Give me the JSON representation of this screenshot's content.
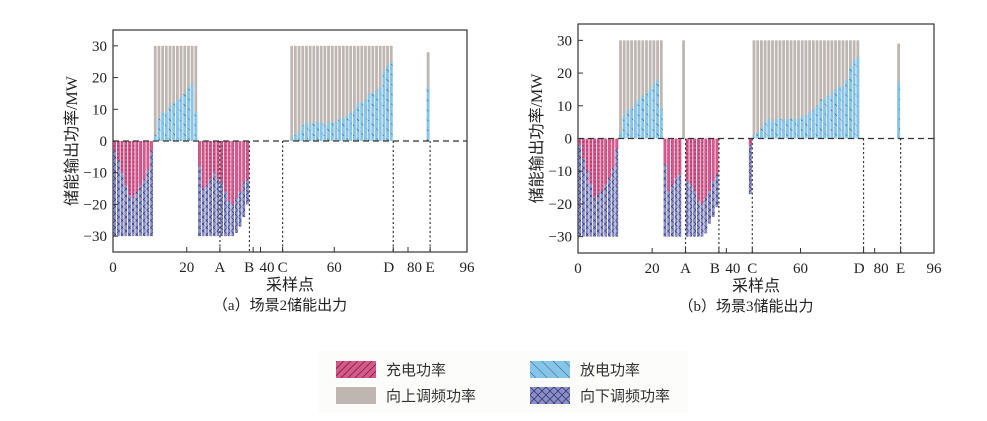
{
  "colors": {
    "charge": "#d9578a",
    "discharge": "#86c5ea",
    "up_reg": "#bfb6b1",
    "down_reg": "#8a8fcc",
    "axis": "#333333",
    "legend_bg": "#fcfcfb"
  },
  "legend": {
    "items": [
      {
        "key": "charge",
        "label": "充电功率"
      },
      {
        "key": "discharge",
        "label": "放电功率"
      },
      {
        "key": "up_reg",
        "label": "向上调频功率"
      },
      {
        "key": "down_reg",
        "label": "向下调频功率"
      }
    ]
  },
  "chart_data": [
    {
      "type": "bar",
      "title": "（a）场景2储能出力",
      "xlabel": "采样点",
      "ylabel": "储能输出功率/MW",
      "xlim": [
        0,
        96
      ],
      "ylim": [
        -35,
        35
      ],
      "yticks": [
        -30,
        -20,
        -10,
        0,
        10,
        20,
        30
      ],
      "xticks": [
        {
          "v": 0,
          "label": "0"
        },
        {
          "v": 20,
          "label": "20"
        },
        {
          "v": 29,
          "label": "A"
        },
        {
          "v": 38,
          "label": "B"
        },
        {
          "v": 40,
          "label": "40"
        },
        {
          "v": 46,
          "label": "C"
        },
        {
          "v": 60,
          "label": "60"
        },
        {
          "v": 76,
          "label": "D"
        },
        {
          "v": 80,
          "label": "80"
        },
        {
          "v": 86,
          "label": "E"
        },
        {
          "v": 96,
          "label": "96"
        }
      ],
      "vlines": [
        29,
        37,
        46,
        76,
        86
      ],
      "series": {
        "charge": {
          "x": [
            1,
            2,
            3,
            4,
            5,
            6,
            7,
            8,
            9,
            10,
            11,
            24,
            25,
            26,
            27,
            28,
            29,
            30,
            31,
            32,
            33,
            34,
            35,
            36,
            37
          ],
          "values": [
            -3,
            -6,
            -10,
            -14,
            -17,
            -18,
            -16,
            -14,
            -12,
            -9,
            -3,
            -8,
            -15,
            -14,
            -12,
            -10,
            -12,
            -13,
            -16,
            -19,
            -20,
            -18,
            -16,
            -13,
            -12
          ]
        },
        "down_reg": {
          "x": [
            1,
            2,
            3,
            4,
            5,
            6,
            7,
            8,
            9,
            10,
            11,
            24,
            25,
            26,
            27,
            28,
            29,
            30,
            31,
            32,
            33,
            34,
            35,
            36,
            37
          ],
          "values": [
            -30,
            -30,
            -30,
            -30,
            -30,
            -30,
            -30,
            -30,
            -30,
            -30,
            -30,
            -30,
            -30,
            -30,
            -30,
            -30,
            -30,
            -30,
            -30,
            -30,
            -30,
            -29,
            -27,
            -24,
            -20
          ]
        },
        "discharge": {
          "x": [
            12,
            13,
            14,
            15,
            16,
            17,
            18,
            19,
            20,
            21,
            22,
            23,
            49,
            50,
            51,
            52,
            53,
            54,
            55,
            56,
            57,
            58,
            59,
            60,
            61,
            62,
            63,
            64,
            65,
            66,
            67,
            68,
            69,
            70,
            71,
            72,
            73,
            74,
            75,
            76,
            86
          ],
          "values": [
            2,
            7,
            9,
            9,
            11,
            12,
            13,
            14,
            15,
            17,
            18,
            9,
            1,
            2,
            3,
            5,
            6,
            5,
            6,
            6,
            6,
            5,
            6,
            6,
            6,
            7,
            7,
            8,
            9,
            10,
            12,
            12,
            13,
            15,
            15,
            16,
            17,
            22,
            24,
            25,
            17
          ]
        },
        "up_reg": {
          "x": [
            12,
            13,
            14,
            15,
            16,
            17,
            18,
            19,
            20,
            21,
            22,
            23,
            49,
            50,
            51,
            52,
            53,
            54,
            55,
            56,
            57,
            58,
            59,
            60,
            61,
            62,
            63,
            64,
            65,
            66,
            67,
            68,
            69,
            70,
            71,
            72,
            73,
            74,
            75,
            76,
            86
          ],
          "values": [
            30,
            30,
            30,
            30,
            30,
            30,
            30,
            30,
            30,
            30,
            30,
            30,
            30,
            30,
            30,
            30,
            30,
            30,
            30,
            30,
            30,
            30,
            30,
            30,
            30,
            30,
            30,
            30,
            30,
            30,
            30,
            30,
            30,
            30,
            30,
            30,
            30,
            30,
            30,
            30,
            28
          ]
        }
      }
    },
    {
      "type": "bar",
      "title": "（b）场景3储能出力",
      "xlabel": "采样点",
      "ylabel": "储能输出功率/MW",
      "xlim": [
        0,
        96
      ],
      "ylim": [
        -35,
        35
      ],
      "yticks": [
        -30,
        -20,
        -10,
        0,
        10,
        20,
        30
      ],
      "xticks": [
        {
          "v": 0,
          "label": "0"
        },
        {
          "v": 20,
          "label": "20"
        },
        {
          "v": 29,
          "label": "A"
        },
        {
          "v": 38,
          "label": "B"
        },
        {
          "v": 40,
          "label": "40"
        },
        {
          "v": 47,
          "label": "C"
        },
        {
          "v": 60,
          "label": "60"
        },
        {
          "v": 77,
          "label": "D"
        },
        {
          "v": 80,
          "label": "80"
        },
        {
          "v": 87,
          "label": "E"
        },
        {
          "v": 96,
          "label": "96"
        }
      ],
      "vlines": [
        29,
        38,
        47,
        77,
        87
      ],
      "series": {
        "charge": {
          "x": [
            1,
            2,
            3,
            4,
            5,
            6,
            7,
            8,
            9,
            10,
            11,
            24,
            25,
            26,
            27,
            28,
            30,
            31,
            32,
            33,
            34,
            35,
            36,
            37,
            38,
            47
          ],
          "values": [
            -2,
            -6,
            -10,
            -14,
            -18,
            -17,
            -16,
            -14,
            -12,
            -9,
            -3,
            -8,
            -16,
            -14,
            -12,
            -11,
            -13,
            -14,
            -16,
            -19,
            -20,
            -18,
            -16,
            -13,
            -11,
            -2
          ]
        },
        "down_reg": {
          "x": [
            1,
            2,
            3,
            4,
            5,
            6,
            7,
            8,
            9,
            10,
            11,
            24,
            25,
            26,
            27,
            28,
            30,
            31,
            32,
            33,
            34,
            35,
            36,
            37,
            38,
            47
          ],
          "values": [
            -30,
            -30,
            -30,
            -30,
            -30,
            -30,
            -30,
            -30,
            -30,
            -30,
            -30,
            -30,
            -30,
            -30,
            -30,
            -30,
            -30,
            -30,
            -30,
            -30,
            -30,
            -29,
            -26,
            -24,
            -21,
            -17
          ]
        },
        "discharge": {
          "x": [
            12,
            13,
            14,
            15,
            16,
            17,
            18,
            19,
            20,
            21,
            22,
            23,
            48,
            49,
            50,
            51,
            52,
            53,
            54,
            55,
            56,
            57,
            58,
            59,
            60,
            61,
            62,
            63,
            64,
            65,
            66,
            67,
            68,
            69,
            70,
            71,
            72,
            73,
            74,
            75,
            76,
            87
          ],
          "values": [
            2,
            7,
            9,
            9,
            11,
            12,
            13,
            14,
            15,
            17,
            18,
            9,
            1,
            2,
            3,
            5,
            6,
            5,
            6,
            6,
            6,
            6,
            6,
            6,
            6,
            7,
            7,
            8,
            9,
            10,
            12,
            12,
            13,
            14,
            15,
            16,
            16,
            18,
            22,
            24,
            25,
            17
          ]
        },
        "up_reg": {
          "x": [
            12,
            13,
            14,
            15,
            16,
            17,
            18,
            19,
            20,
            21,
            22,
            23,
            29,
            48,
            49,
            50,
            51,
            52,
            53,
            54,
            55,
            56,
            57,
            58,
            59,
            60,
            61,
            62,
            63,
            64,
            65,
            66,
            67,
            68,
            69,
            70,
            71,
            72,
            73,
            74,
            75,
            76,
            87
          ],
          "values": [
            30,
            30,
            30,
            30,
            30,
            30,
            30,
            30,
            30,
            30,
            30,
            30,
            30,
            30,
            30,
            30,
            30,
            30,
            30,
            30,
            30,
            30,
            30,
            30,
            30,
            30,
            30,
            30,
            30,
            30,
            30,
            30,
            30,
            30,
            30,
            30,
            30,
            30,
            30,
            30,
            30,
            30,
            29
          ]
        }
      }
    }
  ]
}
